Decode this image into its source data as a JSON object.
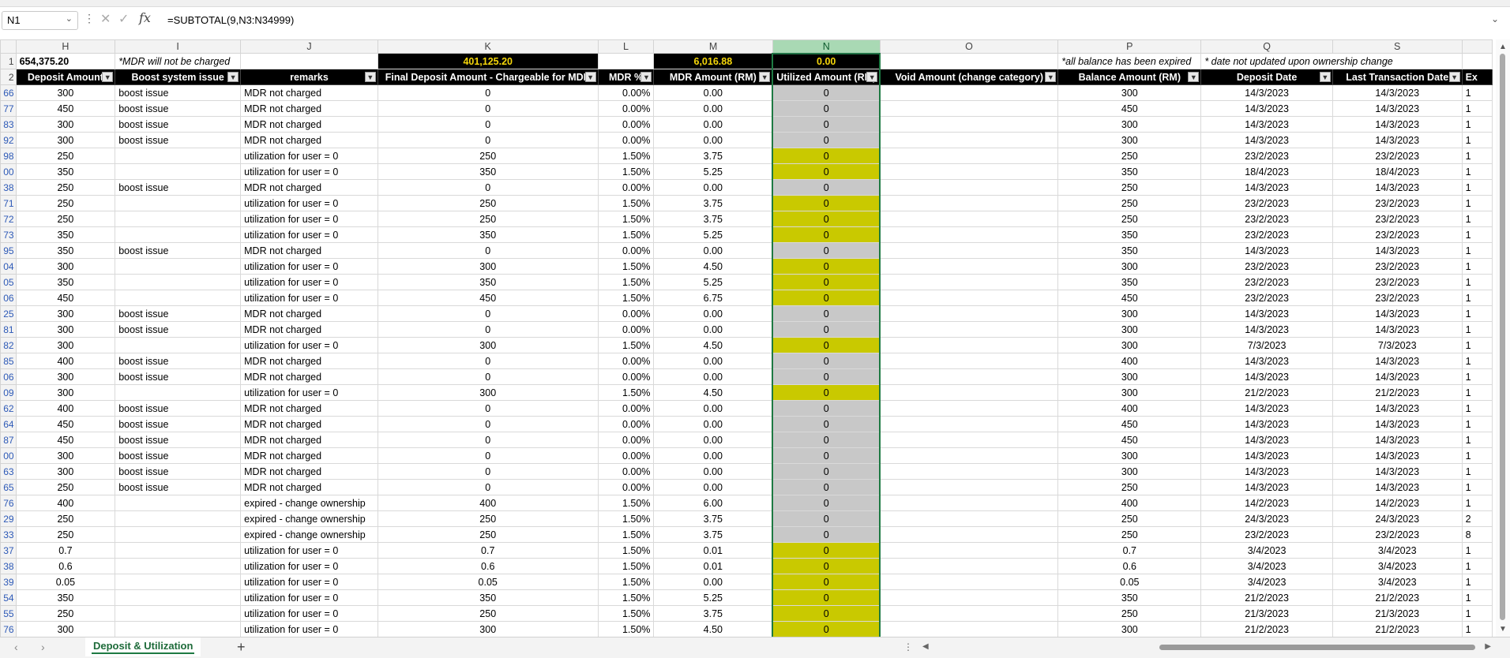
{
  "formula_bar": {
    "name_box": "N1",
    "formula": "=SUBTOTAL(9,N3:N34999)"
  },
  "columns": [
    "H",
    "I",
    "J",
    "K",
    "L",
    "M",
    "N",
    "O",
    "P",
    "Q",
    "S"
  ],
  "summary_row": {
    "row_number": "1",
    "H": "654,375.20",
    "I": "*MDR will not be charged",
    "K": "401,125.20",
    "M": "6,016.88",
    "N": "0.00",
    "P": "*all balance has been expired",
    "Q": "* date not updated upon ownership change"
  },
  "header_row": {
    "row_number": "2",
    "H": "Deposit Amount",
    "I": "Boost system issue",
    "J": "remarks",
    "K": "Final Deposit Amount - Chargeable for MDR",
    "L": "MDR %",
    "M": "MDR Amount (RM)",
    "N": "Utilized Amount (RM)",
    "O": "Void Amount (change category)",
    "P": "Balance Amount (RM)",
    "Q": "Deposit Date",
    "S": "Last Transaction Date",
    "next": "Ex"
  },
  "rows": [
    {
      "rn": "66",
      "h": "300",
      "i": "boost issue",
      "j": "MDR not charged",
      "k": "0",
      "l": "0.00%",
      "m": "0.00",
      "n": "0",
      "ny": false,
      "p": "300",
      "q": "14/3/2023",
      "s": "14/3/2023",
      "x": "1"
    },
    {
      "rn": "77",
      "h": "450",
      "i": "boost issue",
      "j": "MDR not charged",
      "k": "0",
      "l": "0.00%",
      "m": "0.00",
      "n": "0",
      "ny": false,
      "p": "450",
      "q": "14/3/2023",
      "s": "14/3/2023",
      "x": "1"
    },
    {
      "rn": "83",
      "h": "300",
      "i": "boost issue",
      "j": "MDR not charged",
      "k": "0",
      "l": "0.00%",
      "m": "0.00",
      "n": "0",
      "ny": false,
      "p": "300",
      "q": "14/3/2023",
      "s": "14/3/2023",
      "x": "1"
    },
    {
      "rn": "92",
      "h": "300",
      "i": "boost issue",
      "j": "MDR not charged",
      "k": "0",
      "l": "0.00%",
      "m": "0.00",
      "n": "0",
      "ny": false,
      "p": "300",
      "q": "14/3/2023",
      "s": "14/3/2023",
      "x": "1"
    },
    {
      "rn": "98",
      "h": "250",
      "i": "",
      "j": "utilization for user = 0",
      "k": "250",
      "l": "1.50%",
      "m": "3.75",
      "n": "0",
      "ny": true,
      "p": "250",
      "q": "23/2/2023",
      "s": "23/2/2023",
      "x": "1"
    },
    {
      "rn": "00",
      "h": "350",
      "i": "",
      "j": "utilization for user = 0",
      "k": "350",
      "l": "1.50%",
      "m": "5.25",
      "n": "0",
      "ny": true,
      "p": "350",
      "q": "18/4/2023",
      "s": "18/4/2023",
      "x": "1"
    },
    {
      "rn": "38",
      "h": "250",
      "i": "boost issue",
      "j": "MDR not charged",
      "k": "0",
      "l": "0.00%",
      "m": "0.00",
      "n": "0",
      "ny": false,
      "p": "250",
      "q": "14/3/2023",
      "s": "14/3/2023",
      "x": "1"
    },
    {
      "rn": "71",
      "h": "250",
      "i": "",
      "j": "utilization for user = 0",
      "k": "250",
      "l": "1.50%",
      "m": "3.75",
      "n": "0",
      "ny": true,
      "p": "250",
      "q": "23/2/2023",
      "s": "23/2/2023",
      "x": "1"
    },
    {
      "rn": "72",
      "h": "250",
      "i": "",
      "j": "utilization for user = 0",
      "k": "250",
      "l": "1.50%",
      "m": "3.75",
      "n": "0",
      "ny": true,
      "p": "250",
      "q": "23/2/2023",
      "s": "23/2/2023",
      "x": "1"
    },
    {
      "rn": "73",
      "h": "350",
      "i": "",
      "j": "utilization for user = 0",
      "k": "350",
      "l": "1.50%",
      "m": "5.25",
      "n": "0",
      "ny": true,
      "p": "350",
      "q": "23/2/2023",
      "s": "23/2/2023",
      "x": "1"
    },
    {
      "rn": "95",
      "h": "350",
      "i": "boost issue",
      "j": "MDR not charged",
      "k": "0",
      "l": "0.00%",
      "m": "0.00",
      "n": "0",
      "ny": false,
      "p": "350",
      "q": "14/3/2023",
      "s": "14/3/2023",
      "x": "1"
    },
    {
      "rn": "04",
      "h": "300",
      "i": "",
      "j": "utilization for user = 0",
      "k": "300",
      "l": "1.50%",
      "m": "4.50",
      "n": "0",
      "ny": true,
      "p": "300",
      "q": "23/2/2023",
      "s": "23/2/2023",
      "x": "1"
    },
    {
      "rn": "05",
      "h": "350",
      "i": "",
      "j": "utilization for user = 0",
      "k": "350",
      "l": "1.50%",
      "m": "5.25",
      "n": "0",
      "ny": true,
      "p": "350",
      "q": "23/2/2023",
      "s": "23/2/2023",
      "x": "1"
    },
    {
      "rn": "06",
      "h": "450",
      "i": "",
      "j": "utilization for user = 0",
      "k": "450",
      "l": "1.50%",
      "m": "6.75",
      "n": "0",
      "ny": true,
      "p": "450",
      "q": "23/2/2023",
      "s": "23/2/2023",
      "x": "1"
    },
    {
      "rn": "25",
      "h": "300",
      "i": "boost issue",
      "j": "MDR not charged",
      "k": "0",
      "l": "0.00%",
      "m": "0.00",
      "n": "0",
      "ny": false,
      "p": "300",
      "q": "14/3/2023",
      "s": "14/3/2023",
      "x": "1"
    },
    {
      "rn": "81",
      "h": "300",
      "i": "boost issue",
      "j": "MDR not charged",
      "k": "0",
      "l": "0.00%",
      "m": "0.00",
      "n": "0",
      "ny": false,
      "p": "300",
      "q": "14/3/2023",
      "s": "14/3/2023",
      "x": "1"
    },
    {
      "rn": "82",
      "h": "300",
      "i": "",
      "j": "utilization for user = 0",
      "k": "300",
      "l": "1.50%",
      "m": "4.50",
      "n": "0",
      "ny": true,
      "p": "300",
      "q": "7/3/2023",
      "s": "7/3/2023",
      "x": "1"
    },
    {
      "rn": "85",
      "h": "400",
      "i": "boost issue",
      "j": "MDR not charged",
      "k": "0",
      "l": "0.00%",
      "m": "0.00",
      "n": "0",
      "ny": false,
      "p": "400",
      "q": "14/3/2023",
      "s": "14/3/2023",
      "x": "1"
    },
    {
      "rn": "06",
      "h": "300",
      "i": "boost issue",
      "j": "MDR not charged",
      "k": "0",
      "l": "0.00%",
      "m": "0.00",
      "n": "0",
      "ny": false,
      "p": "300",
      "q": "14/3/2023",
      "s": "14/3/2023",
      "x": "1"
    },
    {
      "rn": "09",
      "h": "300",
      "i": "",
      "j": "utilization for user = 0",
      "k": "300",
      "l": "1.50%",
      "m": "4.50",
      "n": "0",
      "ny": true,
      "p": "300",
      "q": "21/2/2023",
      "s": "21/2/2023",
      "x": "1"
    },
    {
      "rn": "62",
      "h": "400",
      "i": "boost issue",
      "j": "MDR not charged",
      "k": "0",
      "l": "0.00%",
      "m": "0.00",
      "n": "0",
      "ny": false,
      "p": "400",
      "q": "14/3/2023",
      "s": "14/3/2023",
      "x": "1"
    },
    {
      "rn": "64",
      "h": "450",
      "i": "boost issue",
      "j": "MDR not charged",
      "k": "0",
      "l": "0.00%",
      "m": "0.00",
      "n": "0",
      "ny": false,
      "p": "450",
      "q": "14/3/2023",
      "s": "14/3/2023",
      "x": "1"
    },
    {
      "rn": "87",
      "h": "450",
      "i": "boost issue",
      "j": "MDR not charged",
      "k": "0",
      "l": "0.00%",
      "m": "0.00",
      "n": "0",
      "ny": false,
      "p": "450",
      "q": "14/3/2023",
      "s": "14/3/2023",
      "x": "1"
    },
    {
      "rn": "00",
      "h": "300",
      "i": "boost issue",
      "j": "MDR not charged",
      "k": "0",
      "l": "0.00%",
      "m": "0.00",
      "n": "0",
      "ny": false,
      "p": "300",
      "q": "14/3/2023",
      "s": "14/3/2023",
      "x": "1"
    },
    {
      "rn": "63",
      "h": "300",
      "i": "boost issue",
      "j": "MDR not charged",
      "k": "0",
      "l": "0.00%",
      "m": "0.00",
      "n": "0",
      "ny": false,
      "p": "300",
      "q": "14/3/2023",
      "s": "14/3/2023",
      "x": "1"
    },
    {
      "rn": "65",
      "h": "250",
      "i": "boost issue",
      "j": "MDR not charged",
      "k": "0",
      "l": "0.00%",
      "m": "0.00",
      "n": "0",
      "ny": false,
      "p": "250",
      "q": "14/3/2023",
      "s": "14/3/2023",
      "x": "1"
    },
    {
      "rn": "76",
      "h": "400",
      "i": "",
      "j": "expired - change ownership",
      "k": "400",
      "l": "1.50%",
      "m": "6.00",
      "n": "0",
      "ny": false,
      "p": "400",
      "q": "14/2/2023",
      "s": "14/2/2023",
      "x": "1"
    },
    {
      "rn": "29",
      "h": "250",
      "i": "",
      "j": "expired - change ownership",
      "k": "250",
      "l": "1.50%",
      "m": "3.75",
      "n": "0",
      "ny": false,
      "p": "250",
      "q": "24/3/2023",
      "s": "24/3/2023",
      "x": "2"
    },
    {
      "rn": "33",
      "h": "250",
      "i": "",
      "j": "expired - change ownership",
      "k": "250",
      "l": "1.50%",
      "m": "3.75",
      "n": "0",
      "ny": false,
      "p": "250",
      "q": "23/2/2023",
      "s": "23/2/2023",
      "x": "8"
    },
    {
      "rn": "37",
      "h": "0.7",
      "i": "",
      "j": "utilization for user = 0",
      "k": "0.7",
      "l": "1.50%",
      "m": "0.01",
      "n": "0",
      "ny": true,
      "p": "0.7",
      "q": "3/4/2023",
      "s": "3/4/2023",
      "x": "1"
    },
    {
      "rn": "38",
      "h": "0.6",
      "i": "",
      "j": "utilization for user = 0",
      "k": "0.6",
      "l": "1.50%",
      "m": "0.01",
      "n": "0",
      "ny": true,
      "p": "0.6",
      "q": "3/4/2023",
      "s": "3/4/2023",
      "x": "1"
    },
    {
      "rn": "39",
      "h": "0.05",
      "i": "",
      "j": "utilization for user = 0",
      "k": "0.05",
      "l": "1.50%",
      "m": "0.00",
      "n": "0",
      "ny": true,
      "p": "0.05",
      "q": "3/4/2023",
      "s": "3/4/2023",
      "x": "1"
    },
    {
      "rn": "54",
      "h": "350",
      "i": "",
      "j": "utilization for user = 0",
      "k": "350",
      "l": "1.50%",
      "m": "5.25",
      "n": "0",
      "ny": true,
      "p": "350",
      "q": "21/2/2023",
      "s": "21/2/2023",
      "x": "1"
    },
    {
      "rn": "55",
      "h": "250",
      "i": "",
      "j": "utilization for user = 0",
      "k": "250",
      "l": "1.50%",
      "m": "3.75",
      "n": "0",
      "ny": true,
      "p": "250",
      "q": "21/3/2023",
      "s": "21/3/2023",
      "x": "1"
    },
    {
      "rn": "76",
      "h": "300",
      "i": "",
      "j": "utilization for user = 0",
      "k": "300",
      "l": "1.50%",
      "m": "4.50",
      "n": "0",
      "ny": true,
      "p": "300",
      "q": "21/2/2023",
      "s": "21/2/2023",
      "x": "1"
    }
  ],
  "sheet_tabs": [
    "Deposit & Utilization"
  ],
  "colors": {
    "header_black": "#000000",
    "total_yellow": "#f4d60a",
    "utilized_yellow": "#c9c900",
    "utilized_gray": "#c8c8c8",
    "selection_green": "#1e7a43"
  }
}
